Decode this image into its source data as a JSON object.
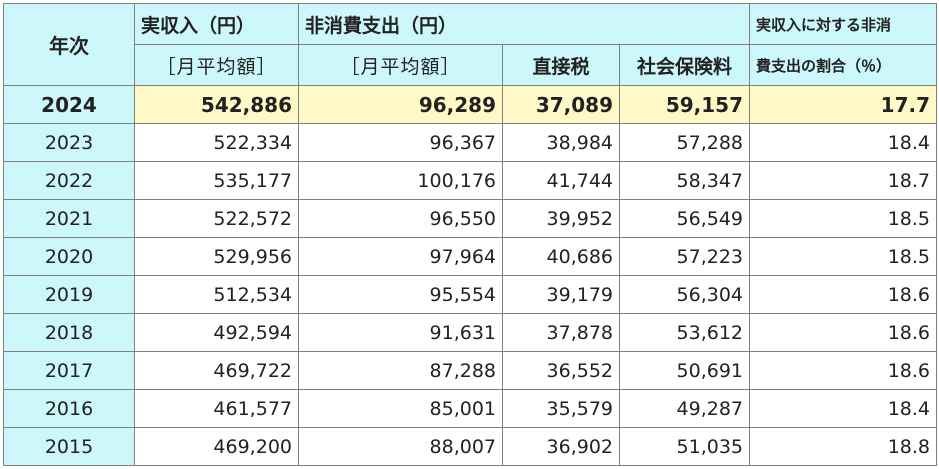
{
  "table": {
    "headers": {
      "year": "年次",
      "income": "実収入（円）",
      "income_sub": "［月平均額］",
      "nonconsumption": "非消費支出（円）",
      "nonconsumption_sub": "［月平均額］",
      "direct_tax": "直接税",
      "social_insurance": "社会保険料",
      "ratio_line1": "実収入に対する非消",
      "ratio_line2": "費支出の割合（％）"
    },
    "highlight_row": {
      "year": "2024",
      "income": "542,886",
      "nonconsumption": "96,289",
      "direct_tax": "37,089",
      "social_insurance": "59,157",
      "ratio": "17.7"
    },
    "rows": [
      {
        "year": "2023",
        "income": "522,334",
        "nonconsumption": "96,367",
        "direct_tax": "38,984",
        "social_insurance": "57,288",
        "ratio": "18.4"
      },
      {
        "year": "2022",
        "income": "535,177",
        "nonconsumption": "100,176",
        "direct_tax": "41,744",
        "social_insurance": "58,347",
        "ratio": "18.7"
      },
      {
        "year": "2021",
        "income": "522,572",
        "nonconsumption": "96,550",
        "direct_tax": "39,952",
        "social_insurance": "56,549",
        "ratio": "18.5"
      },
      {
        "year": "2020",
        "income": "529,956",
        "nonconsumption": "97,964",
        "direct_tax": "40,686",
        "social_insurance": "57,223",
        "ratio": "18.5"
      },
      {
        "year": "2019",
        "income": "512,534",
        "nonconsumption": "95,554",
        "direct_tax": "39,179",
        "social_insurance": "56,304",
        "ratio": "18.6"
      },
      {
        "year": "2018",
        "income": "492,594",
        "nonconsumption": "91,631",
        "direct_tax": "37,878",
        "social_insurance": "53,612",
        "ratio": "18.6"
      },
      {
        "year": "2017",
        "income": "469,722",
        "nonconsumption": "87,288",
        "direct_tax": "36,552",
        "social_insurance": "50,691",
        "ratio": "18.6"
      },
      {
        "year": "2016",
        "income": "461,577",
        "nonconsumption": "85,001",
        "direct_tax": "35,579",
        "social_insurance": "49,287",
        "ratio": "18.4"
      },
      {
        "year": "2015",
        "income": "469,200",
        "nonconsumption": "88,007",
        "direct_tax": "36,902",
        "social_insurance": "51,035",
        "ratio": "18.8"
      }
    ],
    "colors": {
      "header_bg": "#ccf7fb",
      "highlight_bg": "#fff9c8",
      "border": "#808080"
    }
  }
}
